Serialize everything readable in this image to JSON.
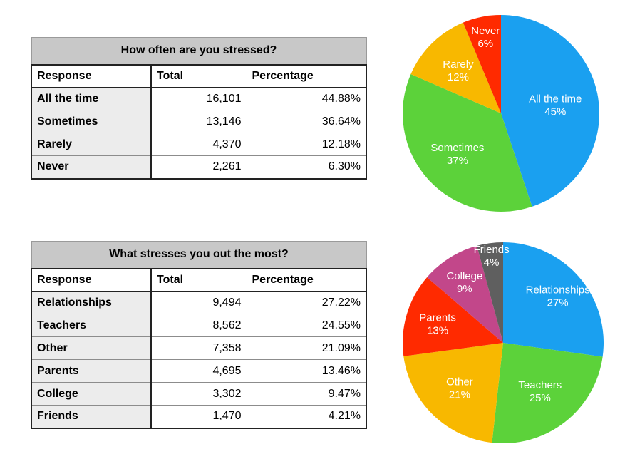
{
  "tables": [
    {
      "title": "How often are you stressed?",
      "headers": [
        "Response",
        "Total",
        "Percentage"
      ],
      "rows": [
        [
          "All the time",
          "16,101",
          "44.88%"
        ],
        [
          "Sometimes",
          "13,146",
          "36.64%"
        ],
        [
          "Rarely",
          "4,370",
          "12.18%"
        ],
        [
          "Never",
          "2,261",
          "6.30%"
        ]
      ]
    },
    {
      "title": "What stresses you out the most?",
      "headers": [
        "Response",
        "Total",
        "Percentage"
      ],
      "rows": [
        [
          "Relationships",
          "9,494",
          "27.22%"
        ],
        [
          "Teachers",
          "8,562",
          "24.55%"
        ],
        [
          "Other",
          "7,358",
          "21.09%"
        ],
        [
          "Parents",
          "4,695",
          "13.46%"
        ],
        [
          "College",
          "3,302",
          "9.47%"
        ],
        [
          "Friends",
          "1,470",
          "4.21%"
        ]
      ]
    }
  ],
  "chart_data": [
    {
      "type": "pie",
      "title": "",
      "slices": [
        {
          "label": "All the time",
          "value": 44.88,
          "pct_label": "45%",
          "color": "#1aa0f0"
        },
        {
          "label": "Sometimes",
          "value": 36.64,
          "pct_label": "37%",
          "color": "#5cd23a"
        },
        {
          "label": "Rarely",
          "value": 12.18,
          "pct_label": "12%",
          "color": "#f8b800"
        },
        {
          "label": "Never",
          "value": 6.3,
          "pct_label": "6%",
          "color": "#ff2a00"
        }
      ]
    },
    {
      "type": "pie",
      "title": "",
      "slices": [
        {
          "label": "Relationships",
          "value": 27.22,
          "pct_label": "27%",
          "color": "#1aa0f0"
        },
        {
          "label": "Teachers",
          "value": 24.55,
          "pct_label": "25%",
          "color": "#5cd23a"
        },
        {
          "label": "Other",
          "value": 21.09,
          "pct_label": "21%",
          "color": "#f8b800"
        },
        {
          "label": "Parents",
          "value": 13.46,
          "pct_label": "13%",
          "color": "#ff2a00"
        },
        {
          "label": "College",
          "value": 9.47,
          "pct_label": "9%",
          "color": "#c2478a"
        },
        {
          "label": "Friends",
          "value": 4.21,
          "pct_label": "4%",
          "color": "#5f5f5f"
        }
      ]
    }
  ]
}
